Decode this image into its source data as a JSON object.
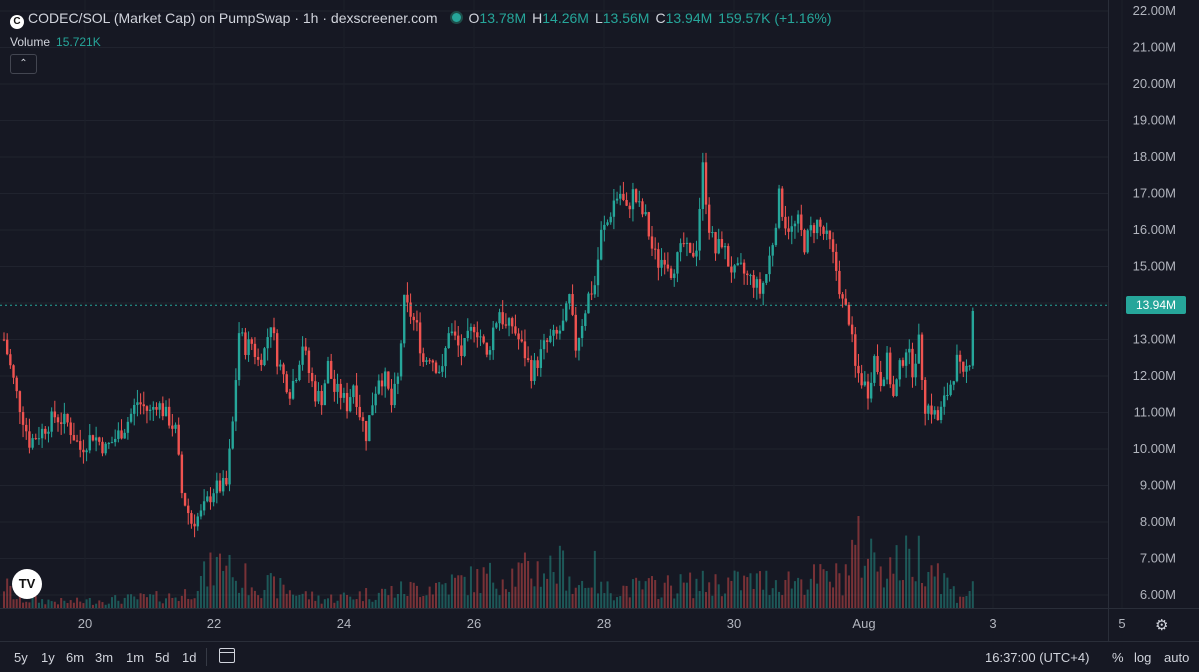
{
  "header": {
    "title": "CODEC/SOL (Market Cap) on PumpSwap · 1h · dexscreener.com",
    "o_label": "O",
    "o_value": "13.78M",
    "h_label": "H",
    "h_value": "14.26M",
    "l_label": "L",
    "l_value": "13.56M",
    "c_label": "C",
    "c_value": "13.94M",
    "change": "159.57K (+1.16%)"
  },
  "volume": {
    "label": "Volume",
    "value": "15.721K"
  },
  "current_price_label": "13.94M",
  "toolbar": {
    "timeframes": [
      "5y",
      "1y",
      "6m",
      "3m",
      "1m",
      "5d",
      "1d"
    ],
    "clock": "16:37:00 (UTC+4)",
    "percent": "%",
    "log": "log",
    "auto": "auto"
  },
  "colors": {
    "up": "#26a69a",
    "down": "#ef5350",
    "background": "#161823"
  },
  "chart_data": {
    "type": "candlestick",
    "y_axis": {
      "min": 5.6,
      "max": 22.2,
      "unit": "M",
      "ticks": [
        "22.00M",
        "21.00M",
        "20.00M",
        "19.00M",
        "18.00M",
        "17.00M",
        "16.00M",
        "15.00M",
        "14.00M",
        "13.00M",
        "12.00M",
        "11.00M",
        "10.00M",
        "9.00M",
        "8.00M",
        "7.00M",
        "6.00M"
      ]
    },
    "x_axis": {
      "labels": [
        "20",
        "22",
        "24",
        "26",
        "28",
        "30",
        "Aug",
        "3",
        "5"
      ]
    },
    "close_path": [
      [
        0,
        13.0
      ],
      [
        4,
        11.5
      ],
      [
        8,
        10.2
      ],
      [
        12,
        10.5
      ],
      [
        16,
        10.9
      ],
      [
        20,
        10.7
      ],
      [
        24,
        10.0
      ],
      [
        28,
        10.4
      ],
      [
        32,
        10.0
      ],
      [
        38,
        10.6
      ],
      [
        42,
        11.3
      ],
      [
        46,
        11.0
      ],
      [
        48,
        11.3
      ],
      [
        52,
        10.8
      ],
      [
        54,
        10.5
      ],
      [
        56,
        8.8
      ],
      [
        59,
        8.0
      ],
      [
        62,
        8.2
      ],
      [
        66,
        8.9
      ],
      [
        70,
        9.0
      ],
      [
        72,
        10.7
      ],
      [
        74,
        13.2
      ],
      [
        76,
        12.8
      ],
      [
        78,
        12.9
      ],
      [
        80,
        12.4
      ],
      [
        82,
        12.7
      ],
      [
        84,
        13.5
      ],
      [
        86,
        12.5
      ],
      [
        88,
        12.0
      ],
      [
        90,
        11.6
      ],
      [
        92,
        12.1
      ],
      [
        94,
        12.9
      ],
      [
        96,
        12.1
      ],
      [
        98,
        11.5
      ],
      [
        100,
        11.4
      ],
      [
        102,
        12.3
      ],
      [
        104,
        11.6
      ],
      [
        106,
        11.5
      ],
      [
        108,
        11.2
      ],
      [
        110,
        11.8
      ],
      [
        112,
        11.0
      ],
      [
        114,
        10.4
      ],
      [
        116,
        11.3
      ],
      [
        118,
        12.0
      ],
      [
        120,
        11.9
      ],
      [
        122,
        11.2
      ],
      [
        124,
        11.9
      ],
      [
        126,
        14.0
      ],
      [
        128,
        13.7
      ],
      [
        130,
        13.3
      ],
      [
        132,
        12.4
      ],
      [
        134,
        12.6
      ],
      [
        136,
        12.3
      ],
      [
        138,
        12.1
      ],
      [
        140,
        13.3
      ],
      [
        142,
        13.0
      ],
      [
        144,
        12.6
      ],
      [
        146,
        13.0
      ],
      [
        148,
        13.4
      ],
      [
        150,
        13.1
      ],
      [
        152,
        12.5
      ],
      [
        154,
        13.3
      ],
      [
        156,
        13.8
      ],
      [
        158,
        13.3
      ],
      [
        160,
        13.4
      ],
      [
        162,
        13.0
      ],
      [
        164,
        12.6
      ],
      [
        166,
        12.1
      ],
      [
        168,
        12.4
      ],
      [
        170,
        12.8
      ],
      [
        172,
        13.0
      ],
      [
        174,
        13.1
      ],
      [
        176,
        13.4
      ],
      [
        178,
        14.1
      ],
      [
        180,
        12.8
      ],
      [
        182,
        13.5
      ],
      [
        184,
        14.2
      ],
      [
        186,
        14.5
      ],
      [
        188,
        15.9
      ],
      [
        190,
        16.2
      ],
      [
        192,
        16.8
      ],
      [
        194,
        17.0
      ],
      [
        196,
        16.5
      ],
      [
        198,
        17.0
      ],
      [
        200,
        16.6
      ],
      [
        202,
        16.3
      ],
      [
        204,
        15.5
      ],
      [
        206,
        15.1
      ],
      [
        208,
        15.3
      ],
      [
        210,
        14.9
      ],
      [
        212,
        15.2
      ],
      [
        214,
        15.6
      ],
      [
        216,
        15.2
      ],
      [
        218,
        15.6
      ],
      [
        220,
        17.7
      ],
      [
        222,
        16.1
      ],
      [
        224,
        15.4
      ],
      [
        226,
        15.7
      ],
      [
        228,
        15.1
      ],
      [
        230,
        14.8
      ],
      [
        232,
        14.9
      ],
      [
        234,
        14.7
      ],
      [
        236,
        14.6
      ],
      [
        238,
        14.3
      ],
      [
        240,
        14.8
      ],
      [
        242,
        15.7
      ],
      [
        244,
        16.9
      ],
      [
        246,
        16.2
      ],
      [
        248,
        16.0
      ],
      [
        250,
        16.2
      ],
      [
        252,
        15.6
      ],
      [
        254,
        16.0
      ],
      [
        256,
        16.2
      ],
      [
        258,
        15.9
      ],
      [
        260,
        15.6
      ],
      [
        262,
        14.9
      ],
      [
        264,
        14.0
      ],
      [
        266,
        13.6
      ],
      [
        268,
        12.2
      ],
      [
        270,
        11.9
      ],
      [
        272,
        11.6
      ],
      [
        274,
        12.5
      ],
      [
        276,
        11.9
      ],
      [
        278,
        12.4
      ],
      [
        280,
        11.4
      ],
      [
        282,
        12.2
      ],
      [
        284,
        12.8
      ],
      [
        286,
        12.2
      ],
      [
        288,
        12.9
      ],
      [
        290,
        11.2
      ],
      [
        292,
        11.1
      ],
      [
        294,
        10.8
      ],
      [
        296,
        11.3
      ],
      [
        298,
        11.8
      ],
      [
        300,
        12.4
      ],
      [
        302,
        11.9
      ],
      [
        304,
        12.5
      ],
      [
        305,
        13.9
      ]
    ],
    "volume_path": [
      [
        0,
        0.4
      ],
      [
        4,
        0.15
      ],
      [
        20,
        0.1
      ],
      [
        56,
        0.2
      ],
      [
        72,
        0.9
      ],
      [
        73,
        0.3
      ],
      [
        74,
        0.5
      ],
      [
        100,
        0.15
      ],
      [
        126,
        0.3
      ],
      [
        178,
        0.7
      ],
      [
        179,
        0.3
      ],
      [
        186,
        0.6
      ],
      [
        188,
        0.3
      ],
      [
        220,
        0.4
      ],
      [
        264,
        0.5
      ],
      [
        268,
        1.0
      ],
      [
        280,
        0.7
      ],
      [
        290,
        0.9
      ],
      [
        300,
        0.2
      ],
      [
        305,
        0.3
      ]
    ]
  }
}
